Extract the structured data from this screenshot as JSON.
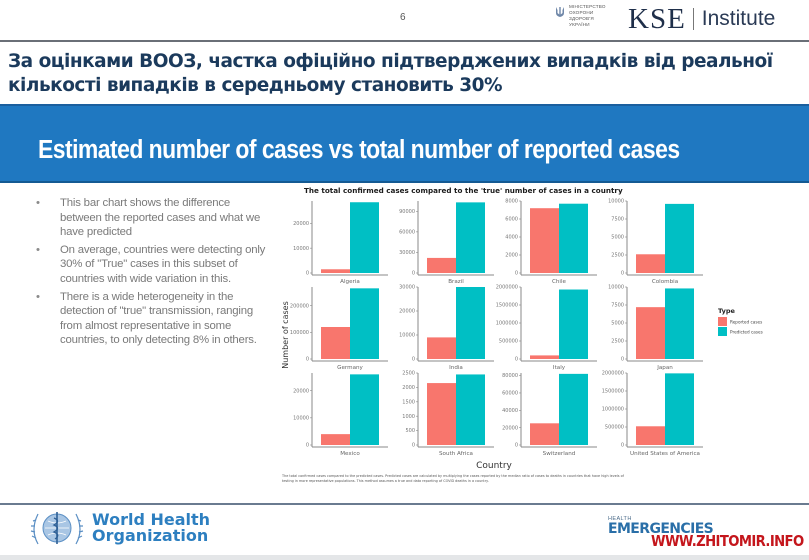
{
  "header": {
    "page_number": "6",
    "ministry_logo_lines": [
      "МІНІСТЕРСТВО",
      "ОХОРОНИ",
      "ЗДОРОВ'Я",
      "УКРАЇНИ"
    ],
    "kse_mark": "KSE",
    "kse_word": "Institute"
  },
  "ua_heading": "За оцінками ВООЗ, частка офіційно підтверджених випадків від реальної кількості випадків в середньому становить 30%",
  "band_title": "Estimated number of cases vs total number of reported cases",
  "bullets": [
    "This bar chart shows the difference between the reported cases and what we have predicted",
    "On average, countries were detecting only 30% of \"True\" cases in this subset of countries with wide variation in this.",
    "There is a wide heterogeneity in the detection of \"true\" transmission, ranging from almost representative in some countries, to only detecting 8% in others."
  ],
  "chart_data": {
    "type": "bar",
    "title": "The total confirmed cases compared to the 'true' number of cases in a country",
    "xlabel": "Country",
    "ylabel": "Number of cases",
    "grid": false,
    "legend": {
      "title": "Type",
      "position": "right",
      "entries": [
        {
          "label": "Reported cases",
          "color": "#f8766d"
        },
        {
          "label": "Predicted cases",
          "color": "#00bfc4"
        }
      ]
    },
    "caption": "The total confirmed cases compared to the predicted cases. Predicted cases are calculated by multiplying the cases reported by the median ratio of cases to deaths in countries that have high levels of testing in more representative populations. This method assumes a true and data reporting of COVID deaths in a country.",
    "panels": [
      {
        "country": "Algeria",
        "reported": 1500,
        "predicted": 28500,
        "ylim": [
          0,
          29000
        ],
        "ticks": [
          0,
          10000,
          20000
        ]
      },
      {
        "country": "Brazil",
        "reported": 22000,
        "predicted": 103000,
        "ylim": [
          0,
          105000
        ],
        "ticks": [
          0,
          30000,
          60000,
          90000
        ]
      },
      {
        "country": "Chile",
        "reported": 7200,
        "predicted": 7700,
        "ylim": [
          0,
          8000
        ],
        "ticks": [
          0,
          2000,
          4000,
          6000,
          8000
        ]
      },
      {
        "country": "Colombia",
        "reported": 2600,
        "predicted": 9600,
        "ylim": [
          0,
          10000
        ],
        "ticks": [
          0,
          2500,
          5000,
          7500,
          10000
        ]
      },
      {
        "country": "Germany",
        "reported": 120000,
        "predicted": 265000,
        "ylim": [
          0,
          270000
        ],
        "ticks": [
          0,
          100000,
          200000
        ]
      },
      {
        "country": "India",
        "reported": 9000,
        "predicted": 30000,
        "ylim": [
          0,
          30000
        ],
        "ticks": [
          0,
          10000,
          20000,
          30000
        ]
      },
      {
        "country": "Italy",
        "reported": 100000,
        "predicted": 1930000,
        "ylim": [
          0,
          2000000
        ],
        "ticks": [
          0,
          500000,
          1000000,
          1500000,
          2000000
        ]
      },
      {
        "country": "Japan",
        "reported": 7200,
        "predicted": 9800,
        "ylim": [
          0,
          10000
        ],
        "ticks": [
          0,
          2500,
          5000,
          7500,
          10000
        ]
      },
      {
        "country": "Mexico",
        "reported": 4000,
        "predicted": 26000,
        "ylim": [
          0,
          26500
        ],
        "ticks": [
          0,
          10000,
          20000
        ]
      },
      {
        "country": "South Africa",
        "reported": 2150,
        "predicted": 2450,
        "ylim": [
          0,
          2500
        ],
        "ticks": [
          0,
          500,
          1000,
          1500,
          2000,
          2500
        ]
      },
      {
        "country": "Switzerland",
        "reported": 25000,
        "predicted": 82000,
        "ylim": [
          0,
          83000
        ],
        "ticks": [
          0,
          20000,
          40000,
          60000,
          80000
        ]
      },
      {
        "country": "United States of America",
        "reported": 520000,
        "predicted": 1990000,
        "ylim": [
          0,
          2000000
        ],
        "ticks": [
          0,
          500000,
          1000000,
          1500000,
          2000000
        ]
      }
    ]
  },
  "footer": {
    "who_line1": "World Health",
    "who_line2": "Organization",
    "he_small": "HEALTH",
    "he_big": "EMERGENCIES",
    "watermark": "WWW.ZHITOMIR.INFO"
  },
  "colors": {
    "band": "#1f78c1",
    "heading": "#1b3a5c",
    "reported": "#f8766d",
    "predicted": "#00bfc4",
    "who_blue": "#2d7fc0",
    "watermark_red": "#c4161c"
  }
}
